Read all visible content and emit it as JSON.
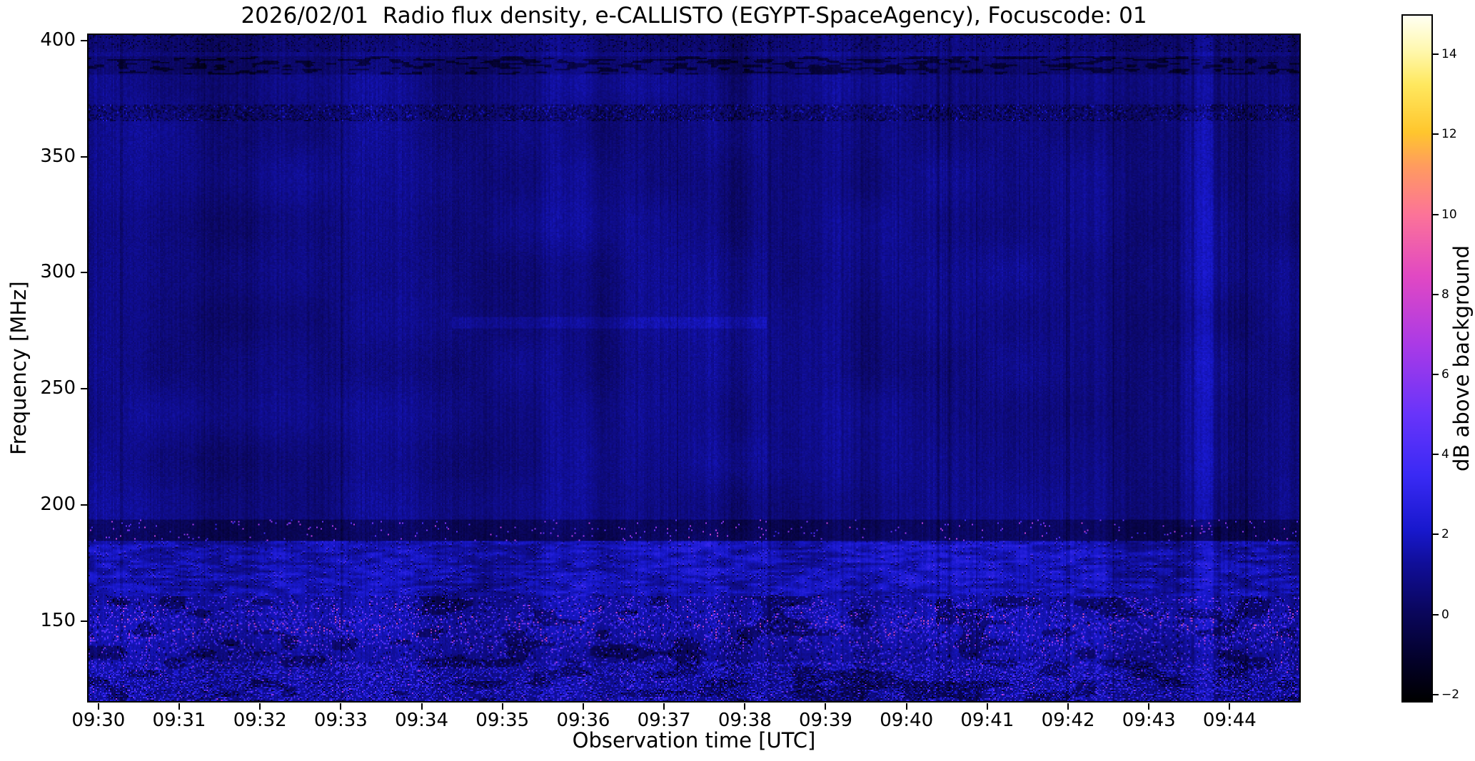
{
  "chart_data": {
    "type": "heatmap",
    "title": "2026/02/01  Radio flux density, e-CALLISTO (EGYPT-SpaceAgency), Focuscode: 01",
    "xlabel": "Observation time [UTC]",
    "ylabel": "Frequency [MHz]",
    "x_ticks": [
      "09:30",
      "09:31",
      "09:32",
      "09:33",
      "09:34",
      "09:35",
      "09:36",
      "09:37",
      "09:38",
      "09:39",
      "09:40",
      "09:41",
      "09:42",
      "09:43",
      "09:44"
    ],
    "y_ticks": [
      400,
      350,
      300,
      250,
      200,
      150
    ],
    "freq_range": [
      115,
      403
    ],
    "time_axis": {
      "first_tick_offset_min": 0.14,
      "tick_interval_min": 1,
      "span_min": 15.02
    },
    "colorbar": {
      "label": "dB above background",
      "vmin": -2.2,
      "vmax": 15.0,
      "ticks": [
        14,
        12,
        10,
        8,
        6,
        4,
        2,
        0,
        -2
      ]
    },
    "colormap": [
      [
        0.0,
        [
          0,
          0,
          0
        ]
      ],
      [
        0.06,
        [
          3,
          1,
          42
        ]
      ],
      [
        0.13,
        [
          10,
          6,
          92
        ]
      ],
      [
        0.2,
        [
          16,
          14,
          152
        ]
      ],
      [
        0.25,
        [
          24,
          24,
          205
        ]
      ],
      [
        0.33,
        [
          58,
          42,
          245
        ]
      ],
      [
        0.42,
        [
          105,
          52,
          250
        ]
      ],
      [
        0.52,
        [
          170,
          58,
          230
        ]
      ],
      [
        0.62,
        [
          225,
          72,
          195
        ]
      ],
      [
        0.71,
        [
          252,
          115,
          152
        ]
      ],
      [
        0.78,
        [
          255,
          155,
          95
        ]
      ],
      [
        0.83,
        [
          255,
          198,
          45
        ]
      ],
      [
        0.9,
        [
          255,
          232,
          95
        ]
      ],
      [
        0.95,
        [
          255,
          248,
          175
        ]
      ],
      [
        1.0,
        [
          255,
          255,
          242
        ]
      ]
    ],
    "render_seed": 20260201,
    "background_level_db": [
      0,
      2
    ],
    "features": [
      {
        "name": "bright-column",
        "desc": "slightly enhanced vertical band just after 09:43",
        "time_frac": [
          0.893,
          0.947
        ],
        "freq": [
          190,
          370
        ],
        "boost_db": 0.9
      },
      {
        "name": "active-low-band",
        "desc": "speckled RFI noise region below 160 MHz, brightest near 148 MHz, pink/magenta bursts to ~9 dB",
        "freq": [
          115,
          160
        ],
        "level_db": [
          -2,
          9
        ]
      },
      {
        "name": "emission-band-170",
        "desc": "structured bright horizontal band",
        "freq": [
          160,
          184
        ]
      },
      {
        "name": "rfi-line-190",
        "desc": "dark lane with sparse bright dots near 190 MHz",
        "freq": [
          184,
          193
        ]
      },
      {
        "name": "faint-line-280",
        "desc": "faint horizontal enhancement around 09:35-09:38",
        "freq": [
          276,
          281
        ],
        "time_frac": [
          0.3,
          0.56
        ]
      },
      {
        "name": "dark-line-370",
        "desc": "noisy dark dashed horizontal line",
        "freq": [
          366,
          373
        ]
      },
      {
        "name": "dark-band-390",
        "desc": "dark mottled band with black blobs",
        "freq": [
          386,
          394
        ]
      }
    ]
  }
}
